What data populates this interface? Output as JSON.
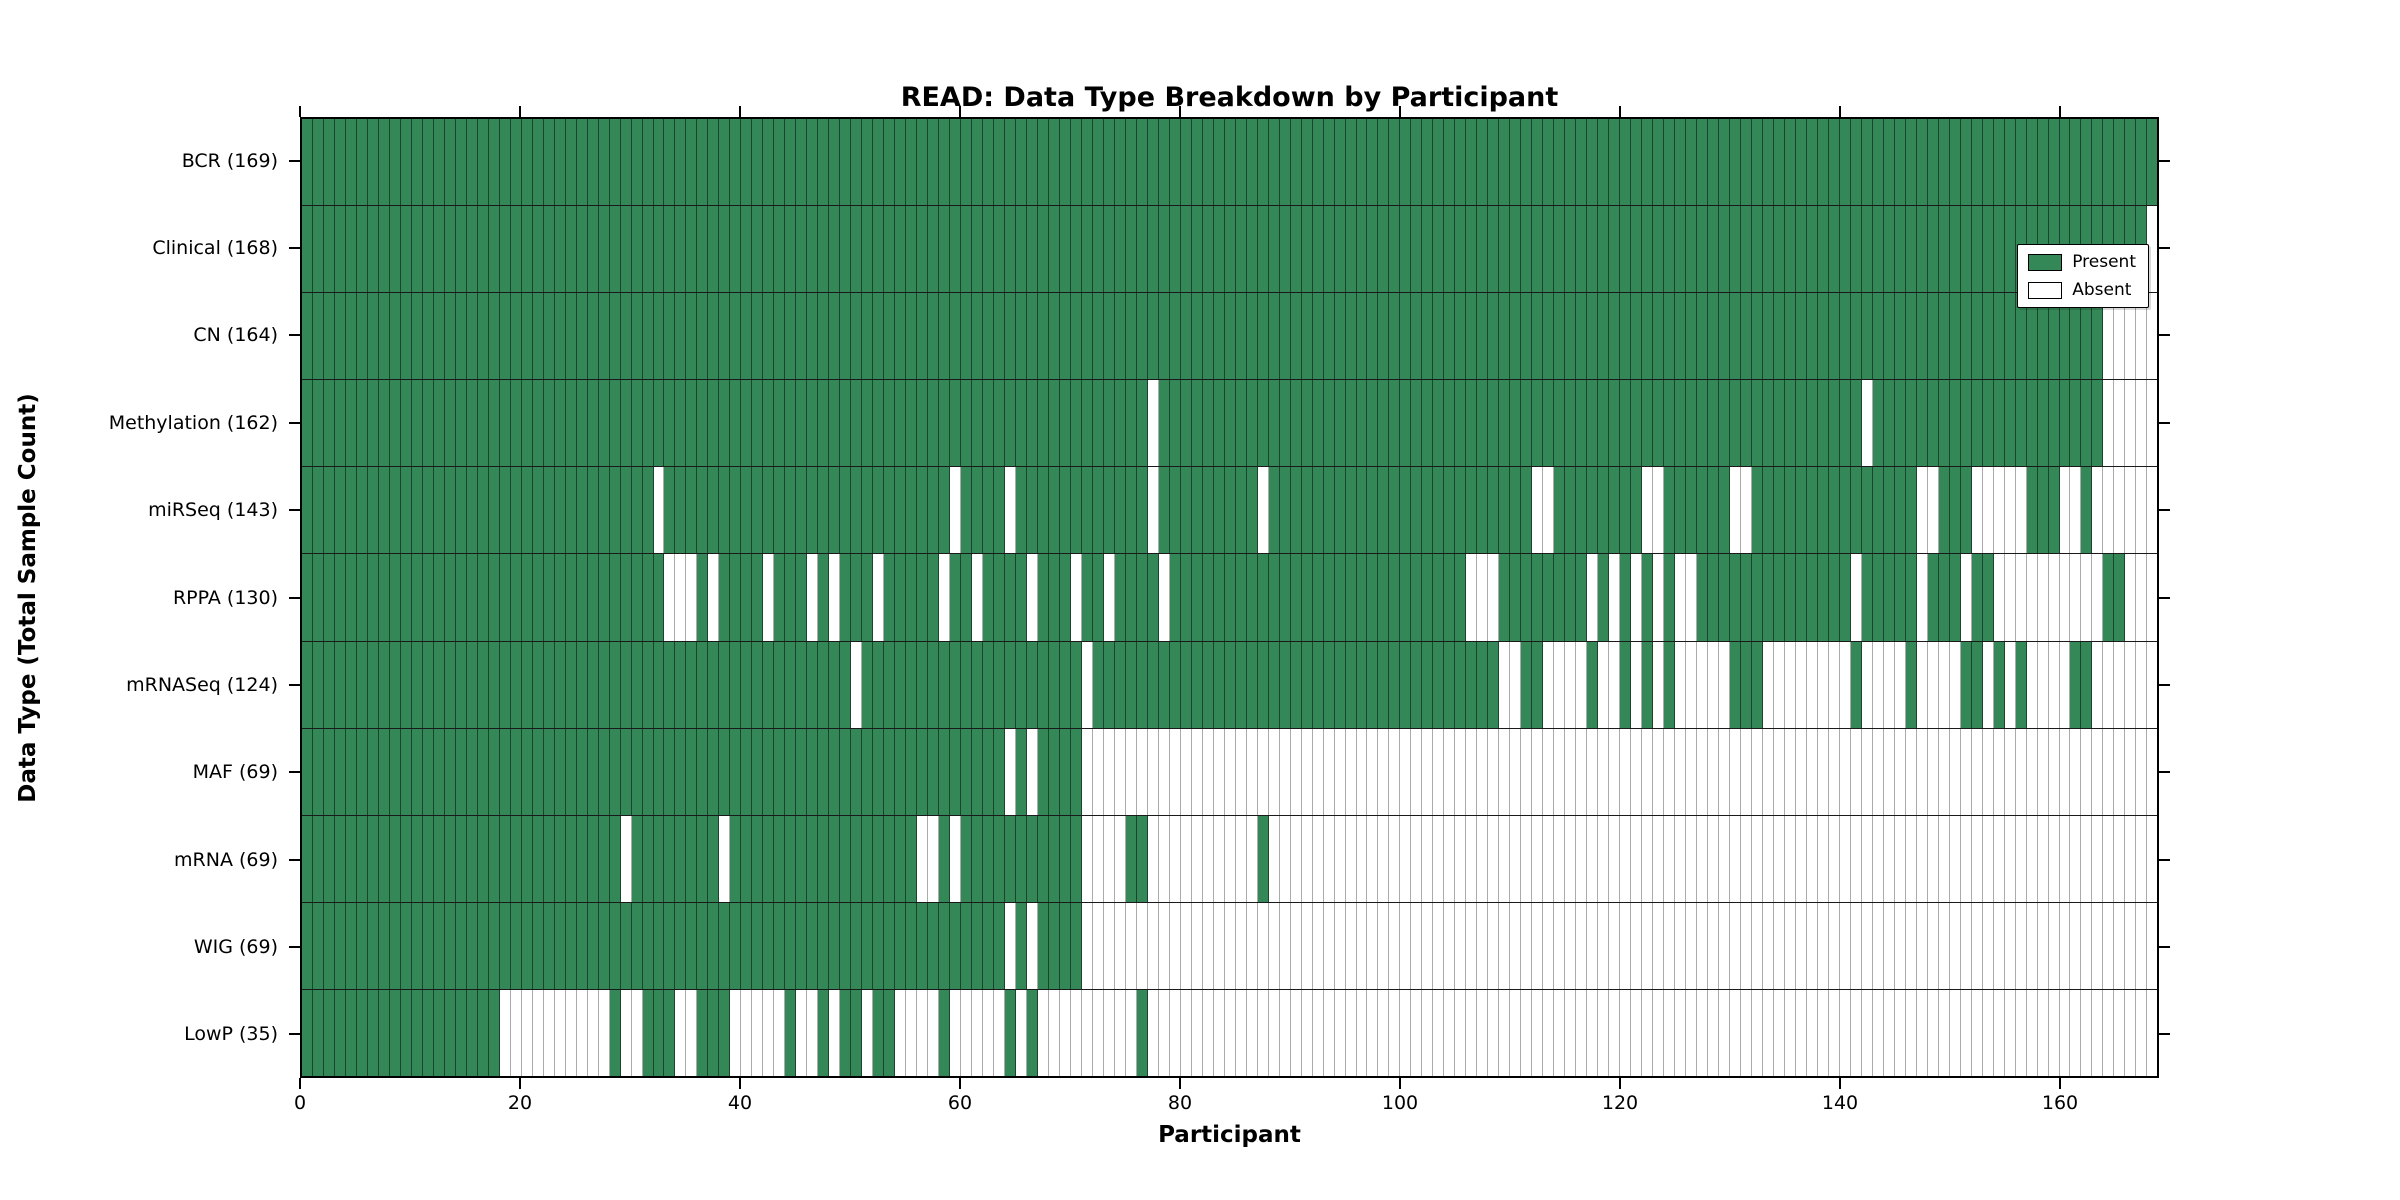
{
  "chart_data": {
    "type": "heatmap",
    "title": "READ: Data Type Breakdown by Participant",
    "xlabel": "Participant",
    "ylabel": "Data Type (Total Sample Count)",
    "n_participants": 169,
    "x_ticks": [
      0,
      20,
      40,
      60,
      80,
      100,
      120,
      140,
      160
    ],
    "x_range": [
      0,
      169
    ],
    "grid": "per-participant vertical gridlines",
    "legend_position": "upper right",
    "colors": {
      "present": "#348857",
      "absent": "#ffffff",
      "grid_on_present": "#1d4a30",
      "grid_on_absent": "#ababab",
      "border": "#000000"
    },
    "legend": [
      {
        "label": "Present",
        "color": "#348857"
      },
      {
        "label": "Absent",
        "color": "#ffffff"
      }
    ],
    "rows": [
      {
        "label": "BCR (169)",
        "data_type": "BCR",
        "count": 169,
        "present_ranges": [
          [
            0,
            168
          ]
        ]
      },
      {
        "label": "Clinical (168)",
        "data_type": "Clinical",
        "count": 168,
        "present_ranges": [
          [
            0,
            167
          ]
        ]
      },
      {
        "label": "CN (164)",
        "data_type": "CN",
        "count": 164,
        "present_ranges": [
          [
            0,
            163
          ]
        ]
      },
      {
        "label": "Methylation (162)",
        "data_type": "Methylation",
        "count": 162,
        "present_ranges": [
          [
            0,
            76
          ],
          [
            78,
            141
          ],
          [
            143,
            163
          ]
        ]
      },
      {
        "label": "miRSeq (143)",
        "data_type": "miRSeq",
        "count": 143,
        "present_ranges": [
          [
            0,
            31
          ],
          [
            33,
            58
          ],
          [
            60,
            63
          ],
          [
            65,
            76
          ],
          [
            78,
            86
          ],
          [
            88,
            111
          ],
          [
            114,
            121
          ],
          [
            124,
            129
          ],
          [
            132,
            146
          ],
          [
            149,
            151
          ],
          [
            157,
            159
          ],
          [
            162,
            162
          ]
        ]
      },
      {
        "label": "RPPA (130)",
        "data_type": "RPPA",
        "count": 130,
        "present_ranges": [
          [
            0,
            32
          ],
          [
            36,
            36
          ],
          [
            38,
            41
          ],
          [
            43,
            45
          ],
          [
            47,
            47
          ],
          [
            49,
            51
          ],
          [
            53,
            57
          ],
          [
            59,
            60
          ],
          [
            62,
            65
          ],
          [
            67,
            69
          ],
          [
            71,
            72
          ],
          [
            74,
            77
          ],
          [
            79,
            105
          ],
          [
            109,
            116
          ],
          [
            118,
            118
          ],
          [
            120,
            120
          ],
          [
            122,
            122
          ],
          [
            124,
            124
          ],
          [
            127,
            140
          ],
          [
            142,
            146
          ],
          [
            148,
            150
          ],
          [
            152,
            153
          ],
          [
            164,
            165
          ]
        ]
      },
      {
        "label": "mRNASeq (124)",
        "data_type": "mRNASeq",
        "count": 124,
        "present_ranges": [
          [
            0,
            49
          ],
          [
            51,
            70
          ],
          [
            72,
            108
          ],
          [
            111,
            112
          ],
          [
            117,
            117
          ],
          [
            120,
            120
          ],
          [
            122,
            122
          ],
          [
            124,
            124
          ],
          [
            130,
            132
          ],
          [
            141,
            141
          ],
          [
            146,
            146
          ],
          [
            151,
            152
          ],
          [
            154,
            154
          ],
          [
            156,
            156
          ],
          [
            161,
            162
          ]
        ]
      },
      {
        "label": "MAF (69)",
        "data_type": "MAF",
        "count": 69,
        "present_ranges": [
          [
            0,
            63
          ],
          [
            65,
            65
          ],
          [
            67,
            70
          ]
        ]
      },
      {
        "label": "mRNA (69)",
        "data_type": "mRNA",
        "count": 69,
        "present_ranges": [
          [
            0,
            28
          ],
          [
            30,
            37
          ],
          [
            39,
            55
          ],
          [
            58,
            58
          ],
          [
            60,
            70
          ],
          [
            75,
            76
          ],
          [
            87,
            87
          ]
        ]
      },
      {
        "label": "WIG (69)",
        "data_type": "WIG",
        "count": 69,
        "present_ranges": [
          [
            0,
            63
          ],
          [
            65,
            65
          ],
          [
            67,
            70
          ]
        ]
      },
      {
        "label": "LowP (35)",
        "data_type": "LowP",
        "count": 35,
        "present_ranges": [
          [
            0,
            17
          ],
          [
            28,
            28
          ],
          [
            31,
            33
          ],
          [
            36,
            38
          ],
          [
            44,
            44
          ],
          [
            47,
            47
          ],
          [
            49,
            50
          ],
          [
            52,
            53
          ],
          [
            58,
            58
          ],
          [
            64,
            64
          ],
          [
            66,
            66
          ],
          [
            76,
            76
          ]
        ]
      }
    ]
  }
}
